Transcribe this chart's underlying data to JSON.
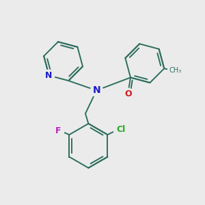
{
  "background_color": "#ebebeb",
  "bond_color": "#2d6e5e",
  "nitrogen_color": "#1a1acc",
  "oxygen_color": "#cc1a1a",
  "fluorine_color": "#bb22bb",
  "chlorine_color": "#22aa22",
  "label_N_central": "N",
  "label_N_py": "N",
  "label_O": "O",
  "label_F": "F",
  "label_Cl": "Cl",
  "figsize": [
    3.0,
    3.0
  ],
  "dpi": 100
}
